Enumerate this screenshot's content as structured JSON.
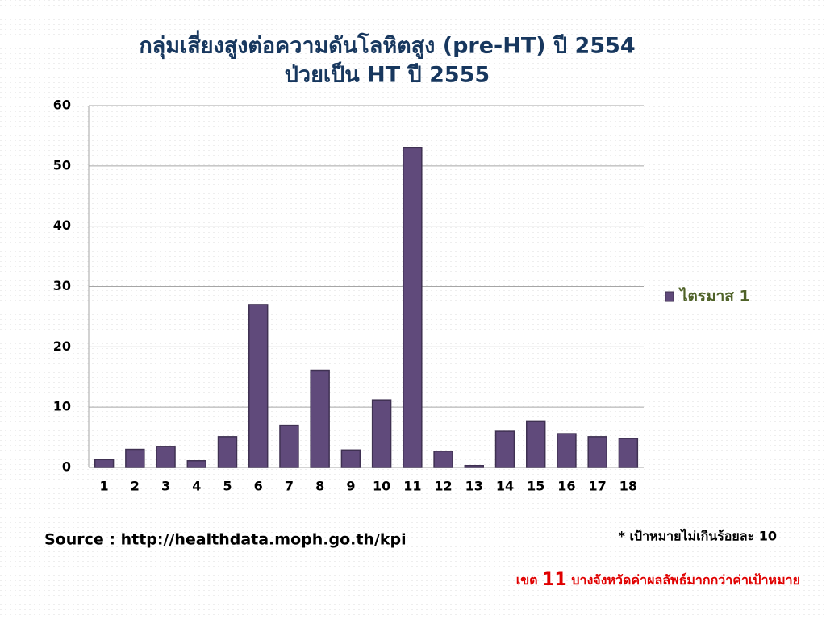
{
  "chart_data": {
    "type": "bar",
    "title": "กลุ่มเสี่ยงสูงต่อความดันโลหิตสูง (pre-HT) ปี 2554",
    "subtitle": "ป่วยเป็น HT ปี 2555",
    "categories": [
      "1",
      "2",
      "3",
      "4",
      "5",
      "6",
      "7",
      "8",
      "9",
      "10",
      "11",
      "12",
      "13",
      "14",
      "15",
      "16",
      "17",
      "18"
    ],
    "series": [
      {
        "name": "ไตรมาส 1",
        "color": "#604a7b",
        "values": [
          1.3,
          3,
          3.5,
          1.1,
          5.1,
          27,
          7,
          16.1,
          2.9,
          11.2,
          53,
          2.7,
          0.3,
          6,
          7.7,
          5.6,
          5.1,
          4.8
        ]
      }
    ],
    "ylim": [
      0,
      60
    ],
    "yticks": [
      0,
      10,
      20,
      30,
      40,
      50,
      60
    ],
    "grid": true,
    "legend": "right"
  },
  "source": "Source : http://healthdata.moph.go.th/kpi",
  "note": "* เป้าหมายไม่เกินร้อยละ 10",
  "footer": {
    "prefix": "เขต",
    "number": "11",
    "suffix": "บางจังหวัดค่าผลลัพธ์มากกว่าค่าเป้าหมาย"
  }
}
